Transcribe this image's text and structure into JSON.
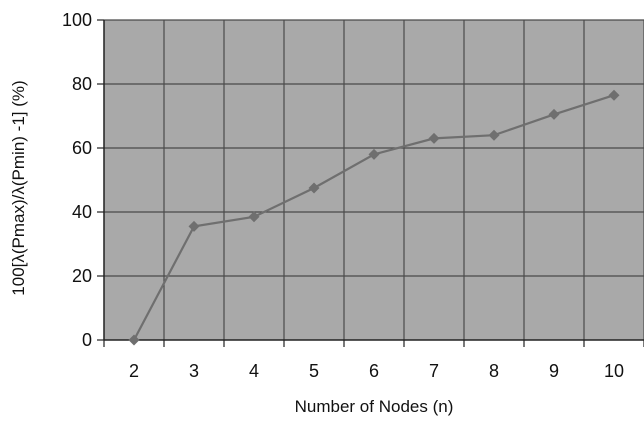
{
  "chart_data": {
    "type": "line",
    "title": "",
    "xlabel": "Number of Nodes (n)",
    "ylabel": "100[λ(Pmax)/λ(Pmin) -1] (%)",
    "x": [
      2,
      3,
      4,
      5,
      6,
      7,
      8,
      9,
      10
    ],
    "series": [
      {
        "values": [
          0,
          35.5,
          38.5,
          47.5,
          58,
          63,
          64,
          70.5,
          76.5
        ]
      }
    ],
    "xlim": [
      1.5,
      10.5
    ],
    "ylim": [
      0,
      100
    ],
    "x_ticks": [
      "2",
      "3",
      "4",
      "5",
      "6",
      "7",
      "8",
      "9",
      "10"
    ],
    "y_ticks": [
      "0",
      "20",
      "40",
      "60",
      "80",
      "100"
    ],
    "grid": true,
    "legend": "none",
    "marker": "diamond",
    "colors": {
      "plot_background": "#a9a9a9",
      "grid": "#4a4a4a",
      "line": "#6f6f6f",
      "marker": "#6f6f6f",
      "text": "#111111"
    }
  }
}
